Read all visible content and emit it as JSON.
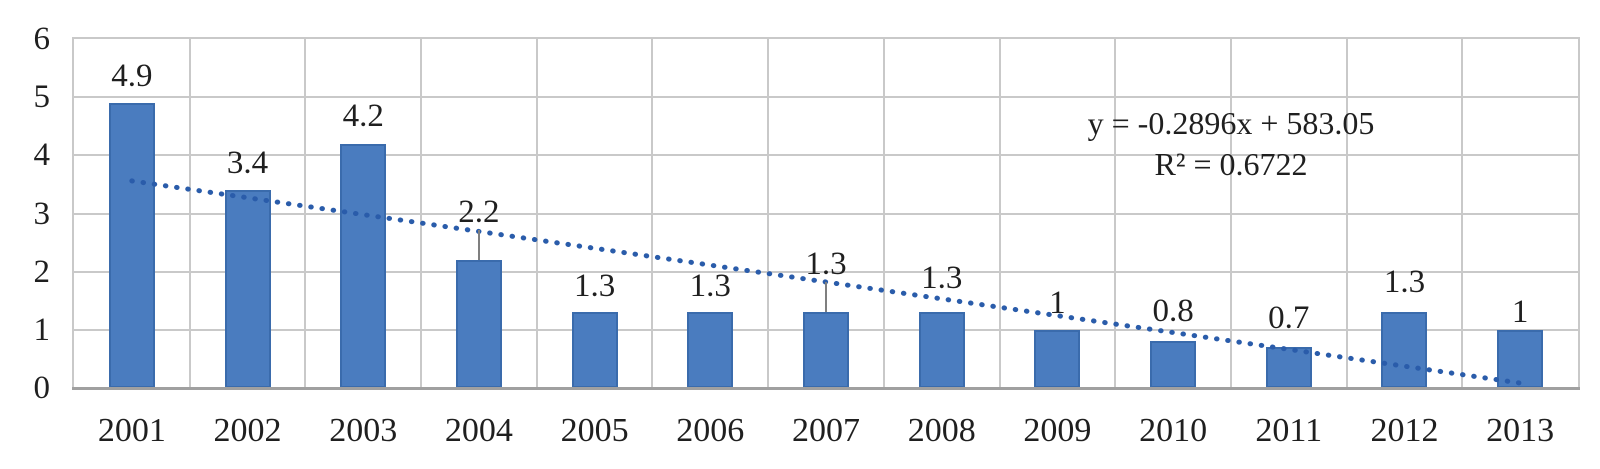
{
  "chart_data": {
    "type": "bar",
    "title": "",
    "xlabel": "",
    "ylabel": "",
    "categories": [
      "2001",
      "2002",
      "2003",
      "2004",
      "2005",
      "2006",
      "2007",
      "2008",
      "2009",
      "2010",
      "2011",
      "2012",
      "2013"
    ],
    "values": [
      4.9,
      3.4,
      4.2,
      2.2,
      1.3,
      1.3,
      1.3,
      1.3,
      1,
      0.8,
      0.7,
      1.3,
      1
    ],
    "labels": [
      "4.9",
      "3.4",
      "4.2",
      "2.2",
      "1.3",
      "1.3",
      "1.3",
      "1.3",
      "1",
      "0.8",
      "0.7",
      "1.3",
      "1"
    ],
    "ylim": [
      0,
      6
    ],
    "yticks": [
      0,
      1,
      2,
      3,
      4,
      5,
      6
    ],
    "grid": true,
    "legend": "none",
    "label_offsets": [
      -45,
      -45,
      -46,
      -66,
      -44,
      -44,
      -66,
      -52,
      -45,
      -48,
      -47,
      -48,
      -36
    ],
    "leader_lines": [
      false,
      false,
      false,
      true,
      false,
      false,
      true,
      false,
      false,
      false,
      false,
      false,
      false
    ],
    "trendline": {
      "style": "dotted",
      "slope": -0.2896,
      "intercept": 583.05,
      "equation": "y = -0.2896x + 583.05",
      "r_squared": "R² = 0.6722"
    },
    "colors": {
      "bar_fill": "#4A7CBF",
      "bar_border": "#3A6BAC",
      "trendline": "#2A5CAA",
      "gridline": "#C9C9C9",
      "axis_line": "#A0A0A0",
      "text": "#1F1F1F"
    }
  }
}
